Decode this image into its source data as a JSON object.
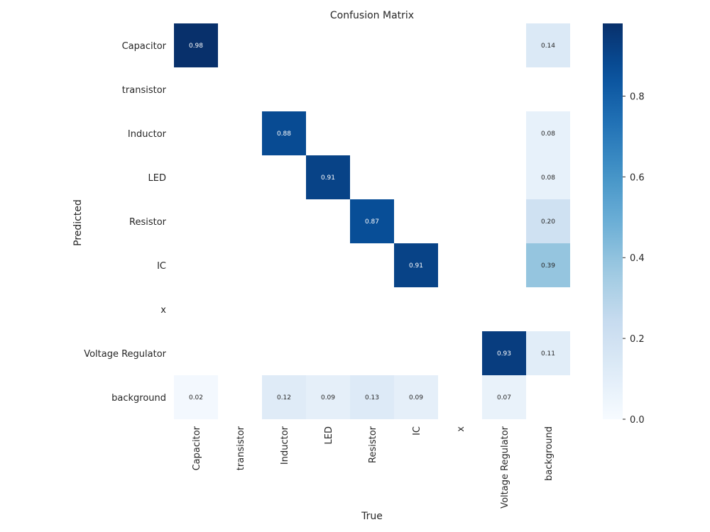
{
  "chart_data": {
    "type": "heatmap",
    "title": "Confusion Matrix",
    "xlabel": "True",
    "ylabel": "Predicted",
    "x_categories": [
      "Capacitor",
      "transistor",
      "Inductor",
      "LED",
      "Resistor",
      "IC",
      "x",
      "Voltage Regulator",
      "background"
    ],
    "y_categories": [
      "Capacitor",
      "transistor",
      "Inductor",
      "LED",
      "Resistor",
      "IC",
      "x",
      "Voltage Regulator",
      "background"
    ],
    "values": [
      [
        0.98,
        null,
        null,
        null,
        null,
        null,
        null,
        null,
        0.14
      ],
      [
        null,
        null,
        null,
        null,
        null,
        null,
        null,
        null,
        null
      ],
      [
        null,
        null,
        0.88,
        null,
        null,
        null,
        null,
        null,
        0.08
      ],
      [
        null,
        null,
        null,
        0.91,
        null,
        null,
        null,
        null,
        0.08
      ],
      [
        null,
        null,
        null,
        null,
        0.87,
        null,
        null,
        null,
        0.2
      ],
      [
        null,
        null,
        null,
        null,
        null,
        0.91,
        null,
        null,
        0.39
      ],
      [
        null,
        null,
        null,
        null,
        null,
        null,
        null,
        null,
        null
      ],
      [
        null,
        null,
        null,
        null,
        null,
        null,
        null,
        0.93,
        0.11
      ],
      [
        0.02,
        null,
        0.12,
        0.09,
        0.13,
        0.09,
        null,
        0.07,
        null
      ]
    ],
    "colorbar": {
      "colormap": "Blues",
      "range": [
        0,
        0.98
      ],
      "ticks": [
        0.0,
        0.2,
        0.4,
        0.6,
        0.8
      ],
      "tick_labels": [
        "0.0",
        "0.2",
        "0.4",
        "0.6",
        "0.8"
      ]
    },
    "colors": {
      "low": "#f7fbff",
      "high": "#08306b",
      "text_dark": "#262626",
      "text_light": "#ffffff"
    }
  }
}
